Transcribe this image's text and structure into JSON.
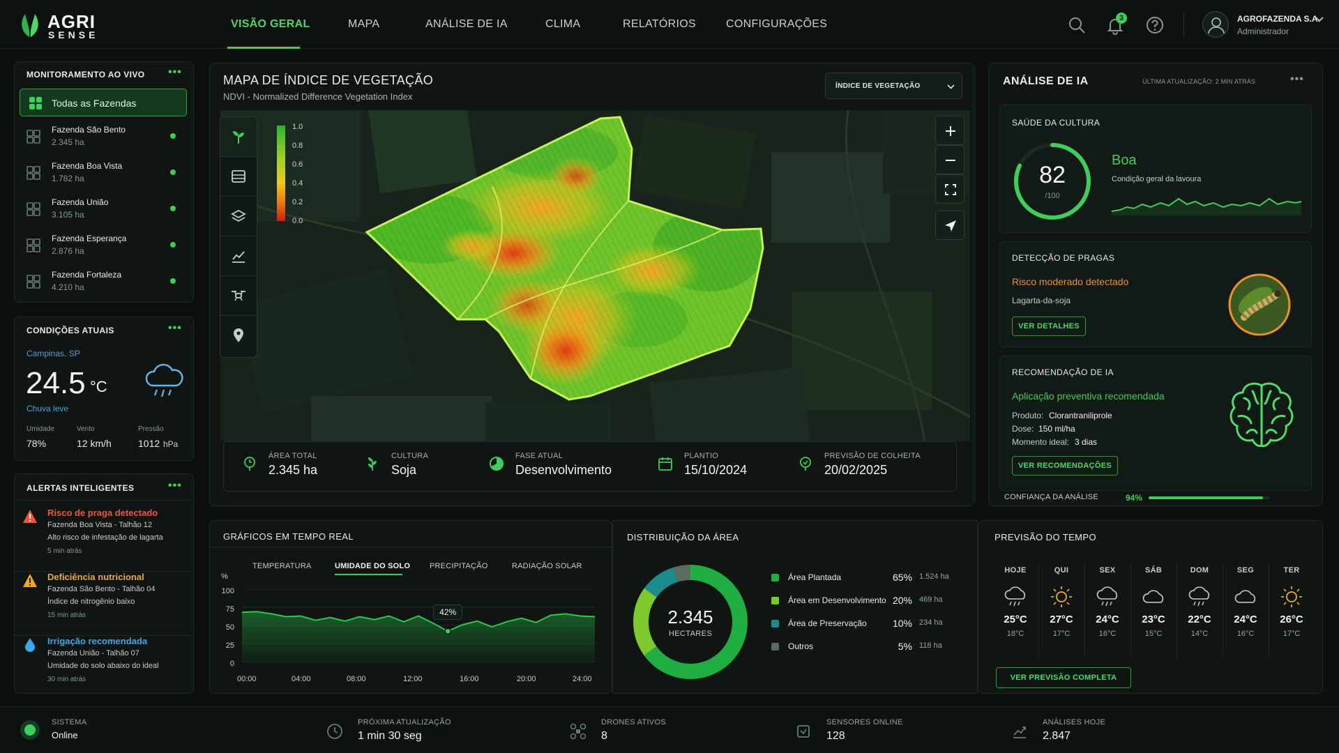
{
  "brand": {
    "name_top": "AGRI",
    "name_bottom": "SENSE"
  },
  "nav": {
    "items": [
      {
        "label": "VISÃO GERAL",
        "active": true
      },
      {
        "label": "MAPA"
      },
      {
        "label": "ANÁLISE DE IA"
      },
      {
        "label": "CLIMA"
      },
      {
        "label": "RELATÓRIOS"
      },
      {
        "label": "CONFIGURAÇÕES"
      }
    ]
  },
  "header": {
    "notification_count": "3",
    "user_name": "AGROFAZENDA S.A.",
    "user_role": "Administrador"
  },
  "monitoring": {
    "title": "MONITORAMENTO AO VIVO",
    "all_label": "Todas as Fazendas",
    "farms": [
      {
        "name": "Fazenda São Bento",
        "area": "2.345 ha"
      },
      {
        "name": "Fazenda Boa Vista",
        "area": "1.782 ha"
      },
      {
        "name": "Fazenda União",
        "area": "3.105 ha"
      },
      {
        "name": "Fazenda Esperança",
        "area": "2.876 ha"
      },
      {
        "name": "Fazenda Fortaleza",
        "area": "4.210 ha"
      }
    ]
  },
  "conditions": {
    "title": "CONDIÇÕES ATUAIS",
    "location": "Campinas, SP",
    "temp": "24.5",
    "unit": "°C",
    "description": "Chuva leve",
    "humidity_label": "Umidade",
    "humidity": "78%",
    "wind_label": "Vento",
    "wind": "12 km/h",
    "pressure_label": "Pressão",
    "pressure": "1012",
    "pressure_unit": "hPa"
  },
  "alerts": {
    "title": "ALERTAS INTELIGENTES",
    "items": [
      {
        "title": "Risco de praga detectado",
        "line1": "Fazenda Boa Vista - Talhão 12",
        "line2": "Alto risco de infestação de lagarta",
        "time": "5 min atrás",
        "color": "#f0563a"
      },
      {
        "title": "Deficiência nutricional",
        "line1": "Fazenda São Bento - Talhão 04",
        "line2": "Índice de nitrogênio baixo",
        "time": "15 min atrás",
        "color": "#f0a92a"
      },
      {
        "title": "Irrigação recomendada",
        "line1": "Fazenda União - Talhão 07",
        "line2": "Umidade do solo abaixo do ideal",
        "time": "30 min atrás",
        "color": "#3aa8f0"
      }
    ]
  },
  "map": {
    "title": "MAPA DE ÍNDICE DE VEGETAÇÃO",
    "subtitle": "NDVI - Normalized Difference Vegetation Index",
    "dropdown": "ÍNDICE DE VEGETAÇÃO",
    "legend": [
      "1.0",
      "0.8",
      "0.6",
      "0.4",
      "0.2",
      "0.0"
    ],
    "stats": [
      {
        "label": "ÁREA TOTAL",
        "value": "2.345 ha"
      },
      {
        "label": "CULTURA",
        "value": "Soja"
      },
      {
        "label": "FASE ATUAL",
        "value": "Desenvolvimento"
      },
      {
        "label": "PLANTIO",
        "value": "15/10/2024"
      },
      {
        "label": "PREVISÃO DE COLHEITA",
        "value": "20/02/2025"
      }
    ]
  },
  "ai": {
    "title": "ANÁLISE DE IA",
    "updated": "ÚLTIMA ATUALIZAÇÃO: 2 MIN ATRÁS",
    "health_title": "SAÚDE DA CULTURA",
    "health_score": "82",
    "health_max": "/100",
    "health_value": 0.82,
    "health_status": "Boa",
    "health_desc": "Condição geral da lavoura",
    "pest_title": "DETECÇÃO DE PRAGAS",
    "pest_status": "Risco moderado detectado",
    "pest_name": "Lagarta-da-soja",
    "pest_button": "VER DETALHES",
    "rec_title": "RECOMENDAÇÃO DE IA",
    "rec_headline": "Aplicação preventiva recomendada",
    "rec_product_label": "Produto:",
    "rec_product": "Clorantraniliprole",
    "rec_dose_label": "Dose:",
    "rec_dose": "150 ml/ha",
    "rec_moment_label": "Momento ideal:",
    "rec_moment": "3 dias",
    "rec_button": "VER RECOMENDAÇÕES",
    "confidence_label": "CONFIANÇA DA ANÁLISE",
    "confidence": "94%",
    "confidence_value": 0.94
  },
  "realtime": {
    "title": "GRÁFICOS EM TEMPO REAL",
    "tabs": [
      "TEMPERATURA",
      "UMIDADE DO SOLO",
      "PRECIPITAÇÃO",
      "RADIAÇÃO SOLAR"
    ],
    "active_tab": 1,
    "y_unit": "%",
    "y_ticks": [
      "100",
      "75",
      "50",
      "25",
      "0"
    ],
    "x_ticks": [
      "00:00",
      "04:00",
      "08:00",
      "12:00",
      "16:00",
      "20:00",
      "24:00"
    ],
    "tooltip": "42%"
  },
  "chart_data": {
    "type": "area",
    "title": "",
    "xlabel": "",
    "ylabel": "%",
    "ylim": [
      0,
      100
    ],
    "xlim": [
      0,
      24
    ],
    "x": [
      0,
      1,
      2,
      3,
      4,
      5,
      6,
      7,
      8,
      9,
      10,
      11,
      12,
      13,
      14,
      15,
      16,
      17,
      18,
      19,
      20,
      21,
      22,
      23,
      24
    ],
    "series": [
      {
        "values": [
          68,
          69,
          66,
          62,
          63,
          57,
          61,
          56,
          62,
          58,
          63,
          55,
          63,
          53,
          42,
          51,
          56,
          48,
          55,
          60,
          54,
          64,
          66,
          63,
          62
        ]
      }
    ],
    "highlight": {
      "x": 14,
      "y": 42,
      "label": "42%"
    },
    "grid": true,
    "legend": "none"
  },
  "distribution": {
    "title": "DISTRIBUIÇÃO DA ÁREA",
    "total": "2.345",
    "total_label": "HECTARES",
    "items": [
      {
        "name": "Área Plantada",
        "pct": "65%",
        "ha": "1.524 ha",
        "value": 65,
        "color": "#1fae42"
      },
      {
        "name": "Área em Desenvolvimento",
        "pct": "20%",
        "ha": "469 ha",
        "value": 20,
        "color": "#7cc92e"
      },
      {
        "name": "Área de Preservação",
        "pct": "10%",
        "ha": "234 ha",
        "value": 10,
        "color": "#1b8c8c"
      },
      {
        "name": "Outros",
        "pct": "5%",
        "ha": "118 ha",
        "value": 5,
        "color": "#5c6b62"
      }
    ]
  },
  "forecast": {
    "title": "PREVISÃO DO TEMPO",
    "button": "VER PREVISÃO COMPLETA",
    "days": [
      {
        "day": "HOJE",
        "icon": "rain-icon",
        "high": "25°C",
        "low": "18°C"
      },
      {
        "day": "QUI",
        "icon": "sun-icon",
        "high": "27°C",
        "low": "17°C"
      },
      {
        "day": "SEX",
        "icon": "rain-icon",
        "high": "24°C",
        "low": "16°C"
      },
      {
        "day": "SÁB",
        "icon": "cloud-icon",
        "high": "23°C",
        "low": "15°C"
      },
      {
        "day": "DOM",
        "icon": "rain-icon",
        "high": "22°C",
        "low": "14°C"
      },
      {
        "day": "SEG",
        "icon": "cloud-icon",
        "high": "24°C",
        "low": "16°C"
      },
      {
        "day": "TER",
        "icon": "sun-icon",
        "high": "26°C",
        "low": "17°C"
      }
    ]
  },
  "status": {
    "system_label": "SISTEMA",
    "system_value": "Online",
    "next_label": "PRÓXIMA ATUALIZAÇÃO",
    "next_value": "1 min 30 seg",
    "drones_label": "DRONES ATIVOS",
    "drones_value": "8",
    "sensors_label": "SENSORES ONLINE",
    "sensors_value": "128",
    "analyses_label": "ANÁLISES HOJE",
    "analyses_value": "2.847"
  }
}
